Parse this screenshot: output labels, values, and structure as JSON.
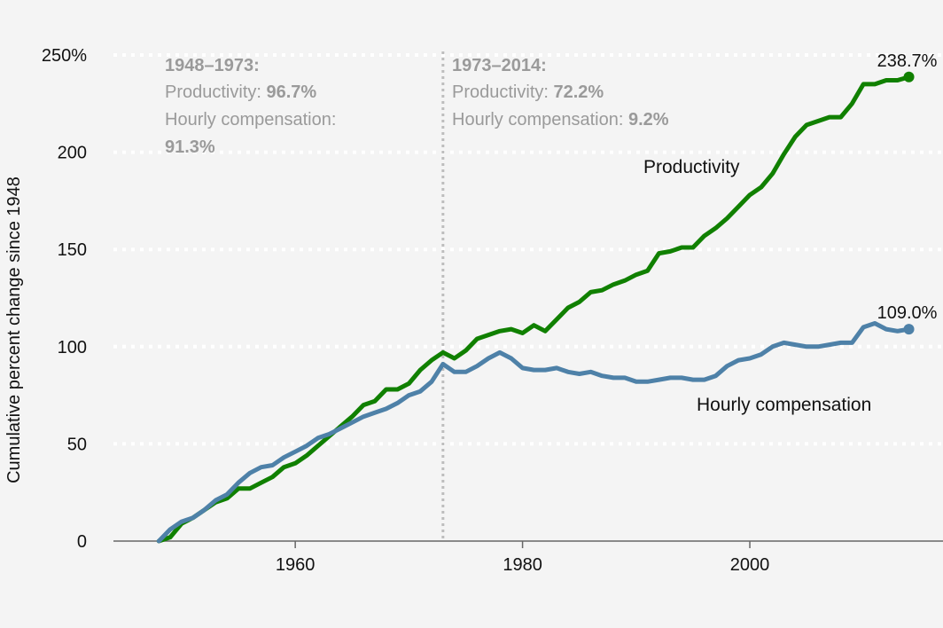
{
  "chart_data": {
    "type": "line",
    "title": "",
    "xlabel": "",
    "ylabel": "Cumulative percent change since 1948",
    "xlim": [
      1944,
      2017
    ],
    "ylim": [
      0,
      250
    ],
    "x_ticks": [
      1960,
      1980,
      2000
    ],
    "x_tick_labels": [
      "1960",
      "1980",
      "2000"
    ],
    "y_ticks": [
      0,
      50,
      100,
      150,
      200,
      250
    ],
    "y_tick_labels": [
      "0",
      "50",
      "100",
      "150",
      "200",
      "250%"
    ],
    "grid": "horizontal dotted",
    "divider_year": 1973,
    "annotations": [
      {
        "title": "1948–1973:",
        "line1_label": "Productivity: ",
        "line1_value": "96.7%",
        "line2_label": "Hourly compensation:",
        "line2_value": "91.3%"
      },
      {
        "title": "1973–2014:",
        "line1_label": "Productivity: ",
        "line1_value": "72.2%",
        "line2_label": "Hourly compensation: ",
        "line2_value": "9.2%"
      }
    ],
    "series": [
      {
        "name": "Productivity",
        "color": "#108000",
        "end_label": "238.7%",
        "x": [
          1948,
          1949,
          1950,
          1951,
          1952,
          1953,
          1954,
          1955,
          1956,
          1957,
          1958,
          1959,
          1960,
          1961,
          1962,
          1963,
          1964,
          1965,
          1966,
          1967,
          1968,
          1969,
          1970,
          1971,
          1972,
          1973,
          1974,
          1975,
          1976,
          1977,
          1978,
          1979,
          1980,
          1981,
          1982,
          1983,
          1984,
          1985,
          1986,
          1987,
          1988,
          1989,
          1990,
          1991,
          1992,
          1993,
          1994,
          1995,
          1996,
          1997,
          1998,
          1999,
          2000,
          2001,
          2002,
          2003,
          2004,
          2005,
          2006,
          2007,
          2008,
          2009,
          2010,
          2011,
          2012,
          2013,
          2014
        ],
        "y": [
          0,
          2,
          9,
          12,
          16,
          20,
          22,
          27,
          27,
          30,
          33,
          38,
          40,
          44,
          49,
          54,
          59,
          64,
          70,
          72,
          78,
          78,
          81,
          88,
          93,
          97,
          94,
          98,
          104,
          106,
          108,
          109,
          107,
          111,
          108,
          114,
          120,
          123,
          128,
          129,
          132,
          134,
          137,
          139,
          148,
          149,
          151,
          151,
          157,
          161,
          166,
          172,
          178,
          182,
          189,
          199,
          208,
          214,
          216,
          218,
          218,
          225,
          235,
          235,
          237,
          237,
          238.7
        ]
      },
      {
        "name": "Hourly compensation",
        "color": "#4e81a8",
        "end_label": "109.0%",
        "x": [
          1948,
          1949,
          1950,
          1951,
          1952,
          1953,
          1954,
          1955,
          1956,
          1957,
          1958,
          1959,
          1960,
          1961,
          1962,
          1963,
          1964,
          1965,
          1966,
          1967,
          1968,
          1969,
          1970,
          1971,
          1972,
          1973,
          1974,
          1975,
          1976,
          1977,
          1978,
          1979,
          1980,
          1981,
          1982,
          1983,
          1984,
          1985,
          1986,
          1987,
          1988,
          1989,
          1990,
          1991,
          1992,
          1993,
          1994,
          1995,
          1996,
          1997,
          1998,
          1999,
          2000,
          2001,
          2002,
          2003,
          2004,
          2005,
          2006,
          2007,
          2008,
          2009,
          2010,
          2011,
          2012,
          2013,
          2014
        ],
        "y": [
          0,
          6,
          10,
          12,
          16,
          21,
          24,
          30,
          35,
          38,
          39,
          43,
          46,
          49,
          53,
          55,
          58,
          61,
          64,
          66,
          68,
          71,
          75,
          77,
          82,
          91,
          87,
          87,
          90,
          94,
          97,
          94,
          89,
          88,
          88,
          89,
          87,
          86,
          87,
          85,
          84,
          84,
          82,
          82,
          83,
          84,
          84,
          83,
          83,
          85,
          90,
          93,
          94,
          96,
          100,
          102,
          101,
          100,
          100,
          101,
          102,
          102,
          110,
          112,
          109,
          108,
          109
        ]
      }
    ]
  }
}
